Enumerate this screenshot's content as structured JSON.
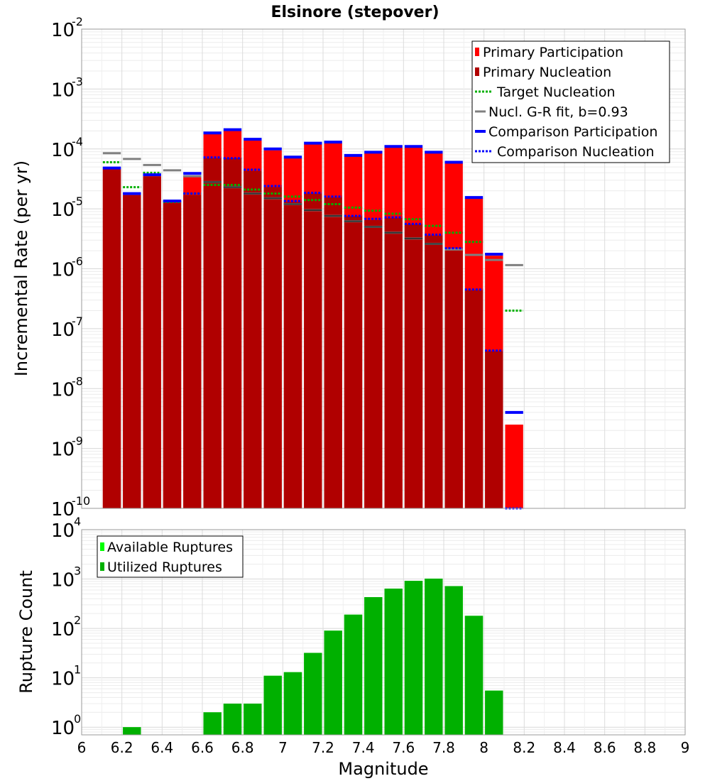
{
  "chart_data": [
    {
      "type": "bar",
      "title": "Elsinore (stepover)",
      "xlabel": "Magnitude",
      "ylabel": "Incremental Rate (per yr)",
      "yscale": "log",
      "ylim": [
        1e-10,
        0.01
      ],
      "xlim": [
        6,
        9
      ],
      "grid": true,
      "legend_position": "top-right",
      "bin_width": 0.1,
      "x": [
        6.15,
        6.25,
        6.35,
        6.45,
        6.55,
        6.65,
        6.75,
        6.85,
        6.95,
        7.05,
        7.15,
        7.25,
        7.35,
        7.45,
        7.55,
        7.65,
        7.75,
        7.85,
        7.95,
        8.05,
        8.15
      ],
      "legend": {
        "primary_participation": "Primary Participation",
        "primary_nucleation": "Primary Nucleation",
        "target_nucleation": "Target Nucleation",
        "gr_fit": "Nucl. G-R fit, b=0.93",
        "comparison_participation": "Comparison Participation",
        "comparison_nucleation": "Comparison Nucleation"
      },
      "series": [
        {
          "name": "Primary Participation",
          "kind": "bar",
          "color": "#ff0000",
          "values": [
            4.6e-05,
            1.7e-05,
            3.5e-05,
            1.3e-05,
            3.6e-05,
            0.00018,
            0.0002,
            0.00014,
            9.5e-05,
            7e-05,
            0.00012,
            0.000125,
            7.5e-05,
            8.5e-05,
            0.000105,
            0.000105,
            8.5e-05,
            5.8e-05,
            1.5e-05,
            1.65e-06,
            2.5e-09
          ]
        },
        {
          "name": "Primary Nucleation",
          "kind": "bar",
          "color": "#b00000",
          "values": [
            4.6e-05,
            1.7e-05,
            3.5e-05,
            1.25e-05,
            1.7e-05,
            7e-05,
            7e-05,
            4.3e-05,
            2.3e-05,
            1.3e-05,
            1.8e-05,
            1.55e-05,
            7.5e-06,
            6.5e-06,
            7e-06,
            5.5e-06,
            3.6e-06,
            2.1e-06,
            4.4e-07,
            4.2e-08,
            1e-10
          ]
        },
        {
          "name": "Target Nucleation",
          "kind": "step",
          "color": "#00b000",
          "dash": "dotted",
          "values": [
            6e-05,
            2.3e-05,
            4e-05,
            1.3e-05,
            1.8e-05,
            2.5e-05,
            2.5e-05,
            2.1e-05,
            1.8e-05,
            1.6e-05,
            1.4e-05,
            1.2e-05,
            1.05e-05,
            9.3e-06,
            8.3e-06,
            6.7e-06,
            5.2e-06,
            4e-06,
            2.8e-06,
            1.75e-06,
            2e-07
          ]
        },
        {
          "name": "Nucl. G-R fit, b=0.93",
          "kind": "step",
          "color": "#808080",
          "dash": "solid",
          "values": [
            8.5e-05,
            6.8e-05,
            5.4e-05,
            4.4e-05,
            3.5e-05,
            2.8e-05,
            2.3e-05,
            1.8e-05,
            1.5e-05,
            1.2e-05,
            9.5e-06,
            7.6e-06,
            6.2e-06,
            5e-06,
            4e-06,
            3.2e-06,
            2.6e-06,
            2.1e-06,
            1.7e-06,
            1.4e-06,
            1.15e-06
          ]
        },
        {
          "name": "Comparison Participation",
          "kind": "step",
          "color": "#0000ff",
          "dash": "solid",
          "values": [
            4.8e-05,
            1.8e-05,
            3.7e-05,
            1.35e-05,
            3.9e-05,
            0.000185,
            0.00021,
            0.000145,
            0.0001,
            7.3e-05,
            0.000125,
            0.00013,
            7.8e-05,
            8.8e-05,
            0.00011,
            0.00011,
            8.8e-05,
            6e-05,
            1.55e-05,
            1.75e-06,
            4e-09
          ]
        },
        {
          "name": "Comparison Nucleation",
          "kind": "step",
          "color": "#0000ff",
          "dash": "dotted",
          "values": [
            4.8e-05,
            1.8e-05,
            3.7e-05,
            1.35e-05,
            1.8e-05,
            7.2e-05,
            7e-05,
            4.5e-05,
            2.4e-05,
            1.35e-05,
            1.85e-05,
            1.6e-05,
            7.6e-06,
            6.8e-06,
            7.2e-06,
            5.6e-06,
            3.7e-06,
            2.2e-06,
            4.5e-07,
            4.3e-08,
            1e-10
          ]
        }
      ]
    },
    {
      "type": "bar",
      "xlabel": "Magnitude",
      "ylabel": "Rupture Count",
      "yscale": "log",
      "ylim": [
        0.7,
        10000
      ],
      "xlim": [
        6,
        9
      ],
      "grid": true,
      "legend_position": "top-left",
      "x": [
        6.25,
        6.65,
        6.75,
        6.85,
        6.95,
        7.05,
        7.15,
        7.25,
        7.35,
        7.45,
        7.55,
        7.65,
        7.75,
        7.85,
        7.95,
        8.05
      ],
      "legend": {
        "available": "Available Ruptures",
        "utilized": "Utilized Ruptures"
      },
      "series": [
        {
          "name": "Available Ruptures",
          "color": "#00ff00",
          "values": [
            1,
            2,
            3,
            3,
            11,
            13,
            32,
            90,
            190,
            430,
            640,
            920,
            1020,
            720,
            180,
            5.5
          ]
        },
        {
          "name": "Utilized Ruptures",
          "color": "#00b000",
          "values": [
            1,
            2,
            3,
            3,
            11,
            13,
            32,
            90,
            190,
            430,
            640,
            920,
            1020,
            720,
            180,
            5.5
          ]
        }
      ]
    }
  ],
  "axes_text": {
    "x_ticks": [
      "6",
      "6.2",
      "6.4",
      "6.6",
      "6.8",
      "7",
      "7.2",
      "7.4",
      "7.6",
      "7.8",
      "8",
      "8.2",
      "8.4",
      "8.6",
      "8.8",
      "9"
    ],
    "top_y_ticks": [
      {
        "base": "10",
        "exp": "-10"
      },
      {
        "base": "10",
        "exp": "-9"
      },
      {
        "base": "10",
        "exp": "-8"
      },
      {
        "base": "10",
        "exp": "-7"
      },
      {
        "base": "10",
        "exp": "-6"
      },
      {
        "base": "10",
        "exp": "-5"
      },
      {
        "base": "10",
        "exp": "-4"
      },
      {
        "base": "10",
        "exp": "-3"
      },
      {
        "base": "10",
        "exp": "-2"
      }
    ],
    "bottom_y_ticks": [
      {
        "base": "10",
        "exp": "0"
      },
      {
        "base": "10",
        "exp": "1"
      },
      {
        "base": "10",
        "exp": "2"
      },
      {
        "base": "10",
        "exp": "3"
      },
      {
        "base": "10",
        "exp": "4"
      }
    ]
  }
}
